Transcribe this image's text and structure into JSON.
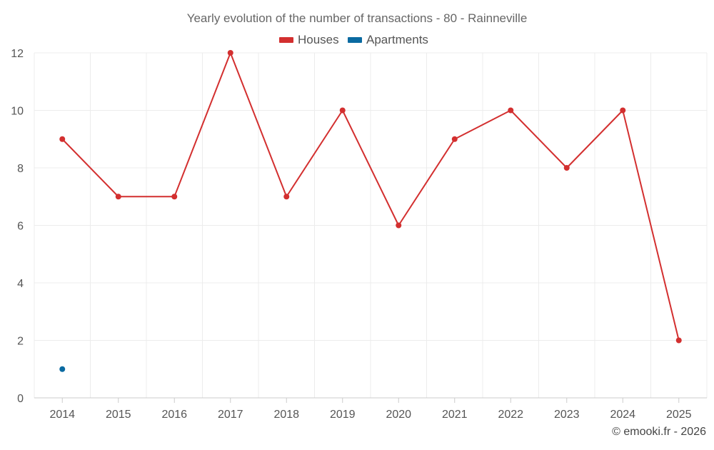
{
  "chart_data": {
    "type": "line",
    "title": "Yearly evolution of the number of transactions - 80 - Rainneville",
    "xlabel": "",
    "ylabel": "",
    "categories": [
      "2014",
      "2015",
      "2016",
      "2017",
      "2018",
      "2019",
      "2020",
      "2021",
      "2022",
      "2023",
      "2024",
      "2025"
    ],
    "ylim": [
      0,
      12
    ],
    "yticks": [
      0,
      2,
      4,
      6,
      8,
      10,
      12
    ],
    "grid": true,
    "legend": "top-center",
    "series": [
      {
        "name": "Houses",
        "color": "#d32f2f",
        "values": [
          9,
          7,
          7,
          12,
          7,
          10,
          6,
          9,
          10,
          8,
          10,
          2
        ]
      },
      {
        "name": "Apartments",
        "color": "#0a6aa1",
        "values": [
          1,
          null,
          null,
          null,
          null,
          null,
          null,
          null,
          null,
          null,
          null,
          null
        ]
      }
    ]
  },
  "credit": "© emooki.fr - 2026"
}
